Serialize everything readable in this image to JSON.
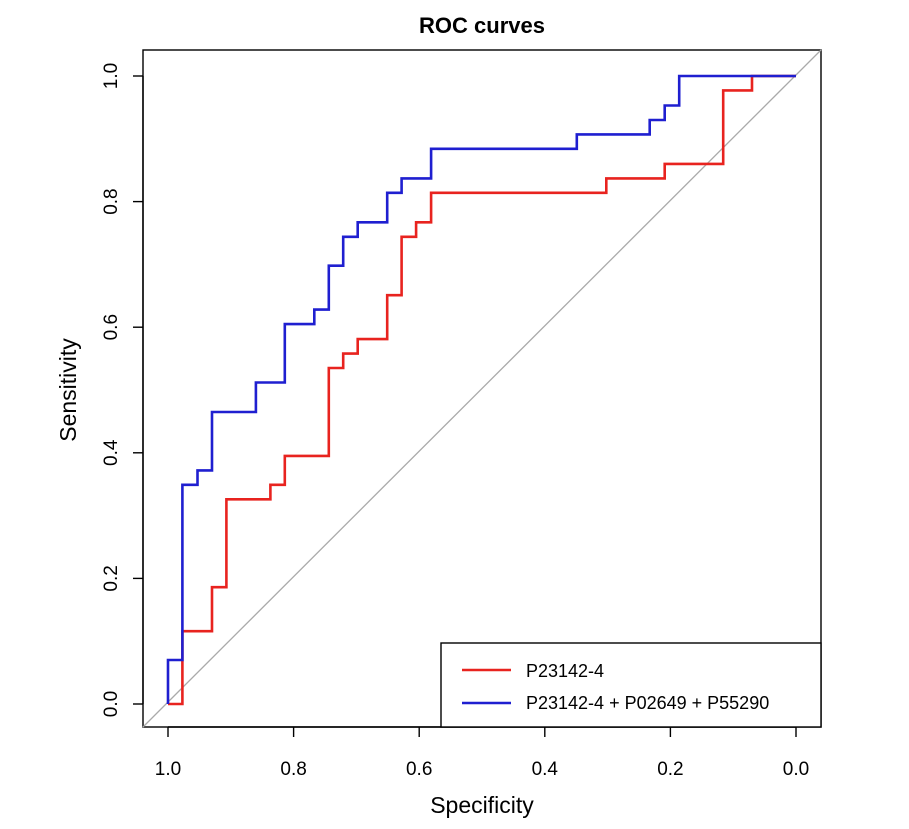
{
  "chart_data": {
    "type": "line",
    "title": "ROC curves",
    "xlabel": "Specificity",
    "ylabel": "Sensitivity",
    "xlim": [
      1.0,
      0.0
    ],
    "ylim": [
      0.0,
      1.0
    ],
    "x_reversed": true,
    "x_ticks": [
      "1.0",
      "0.8",
      "0.6",
      "0.4",
      "0.2",
      "0.0"
    ],
    "x_tick_values": [
      1.0,
      0.8,
      0.6,
      0.4,
      0.2,
      0.0
    ],
    "y_ticks": [
      "0.0",
      "0.2",
      "0.4",
      "0.6",
      "0.8",
      "1.0"
    ],
    "y_tick_values": [
      0.0,
      0.2,
      0.4,
      0.6,
      0.8,
      1.0
    ],
    "grid": false,
    "legend_position": "bottom-right",
    "diagonal": {
      "color": "#aaaaaa",
      "from": [
        1.0,
        0.0
      ],
      "to": [
        0.0,
        1.0
      ]
    },
    "series": [
      {
        "name": "P23142-4",
        "color": "#e8231f",
        "points": [
          [
            1.0,
            0.0
          ],
          [
            0.977,
            0.0
          ],
          [
            0.977,
            0.116
          ],
          [
            0.93,
            0.116
          ],
          [
            0.93,
            0.186
          ],
          [
            0.907,
            0.186
          ],
          [
            0.907,
            0.326
          ],
          [
            0.837,
            0.326
          ],
          [
            0.837,
            0.349
          ],
          [
            0.814,
            0.349
          ],
          [
            0.814,
            0.395
          ],
          [
            0.744,
            0.395
          ],
          [
            0.744,
            0.535
          ],
          [
            0.721,
            0.535
          ],
          [
            0.721,
            0.558
          ],
          [
            0.698,
            0.558
          ],
          [
            0.698,
            0.581
          ],
          [
            0.651,
            0.581
          ],
          [
            0.651,
            0.651
          ],
          [
            0.628,
            0.651
          ],
          [
            0.628,
            0.744
          ],
          [
            0.605,
            0.744
          ],
          [
            0.605,
            0.767
          ],
          [
            0.581,
            0.767
          ],
          [
            0.581,
            0.814
          ],
          [
            0.302,
            0.814
          ],
          [
            0.302,
            0.837
          ],
          [
            0.209,
            0.837
          ],
          [
            0.209,
            0.86
          ],
          [
            0.116,
            0.86
          ],
          [
            0.116,
            0.977
          ],
          [
            0.07,
            0.977
          ],
          [
            0.07,
            1.0
          ],
          [
            0.0,
            1.0
          ]
        ]
      },
      {
        "name": "P23142-4 + P02649 + P55290",
        "color": "#1f1fd0",
        "points": [
          [
            1.0,
            0.0
          ],
          [
            1.0,
            0.07
          ],
          [
            0.977,
            0.07
          ],
          [
            0.977,
            0.349
          ],
          [
            0.953,
            0.349
          ],
          [
            0.953,
            0.372
          ],
          [
            0.93,
            0.372
          ],
          [
            0.93,
            0.465
          ],
          [
            0.86,
            0.465
          ],
          [
            0.86,
            0.512
          ],
          [
            0.814,
            0.512
          ],
          [
            0.814,
            0.605
          ],
          [
            0.767,
            0.605
          ],
          [
            0.767,
            0.628
          ],
          [
            0.744,
            0.628
          ],
          [
            0.744,
            0.698
          ],
          [
            0.721,
            0.698
          ],
          [
            0.721,
            0.744
          ],
          [
            0.698,
            0.744
          ],
          [
            0.698,
            0.767
          ],
          [
            0.651,
            0.767
          ],
          [
            0.651,
            0.814
          ],
          [
            0.628,
            0.814
          ],
          [
            0.628,
            0.837
          ],
          [
            0.581,
            0.837
          ],
          [
            0.581,
            0.884
          ],
          [
            0.349,
            0.884
          ],
          [
            0.349,
            0.907
          ],
          [
            0.233,
            0.907
          ],
          [
            0.233,
            0.93
          ],
          [
            0.209,
            0.93
          ],
          [
            0.209,
            0.953
          ],
          [
            0.186,
            0.953
          ],
          [
            0.186,
            1.0
          ],
          [
            0.0,
            1.0
          ]
        ]
      }
    ]
  }
}
